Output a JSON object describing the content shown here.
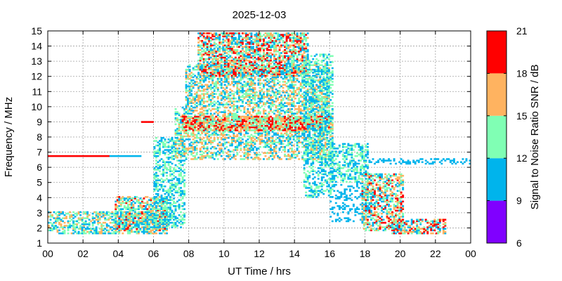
{
  "chart_data": {
    "type": "heatmap",
    "title": "2025-12-03",
    "xlabel": "UT Time / hrs",
    "ylabel": "Frequency / MHz",
    "xlim": [
      0,
      24
    ],
    "ylim": [
      1,
      15
    ],
    "x_ticks": [
      "00",
      "02",
      "04",
      "06",
      "08",
      "10",
      "12",
      "14",
      "16",
      "18",
      "20",
      "22",
      "00"
    ],
    "y_ticks": [
      "1",
      "2",
      "3",
      "4",
      "5",
      "6",
      "7",
      "8",
      "9",
      "10",
      "11",
      "12",
      "13",
      "14",
      "15"
    ],
    "grid": true,
    "colorbar": {
      "label": "Signal to Noise Ratio SNR / dB",
      "range": [
        6,
        21
      ],
      "ticks": [
        "6",
        "9",
        "12",
        "15",
        "18",
        "21"
      ],
      "bands": [
        {
          "from": 6,
          "to": 9,
          "color": "#8000ff"
        },
        {
          "from": 9,
          "to": 12,
          "color": "#00b4ec"
        },
        {
          "from": 12,
          "to": 15,
          "color": "#80ffb4"
        },
        {
          "from": 15,
          "to": 18,
          "color": "#ffb360"
        },
        {
          "from": 18,
          "to": 21,
          "color": "#ff0000"
        }
      ]
    },
    "regions": [
      {
        "x0": 0.0,
        "x1": 6.8,
        "f0": 1.6,
        "f1": 3.1,
        "snr": [
          9,
          17
        ],
        "density": 0.55
      },
      {
        "x0": 3.8,
        "x1": 6.8,
        "f0": 1.8,
        "f1": 4.1,
        "snr": [
          9,
          19
        ],
        "density": 0.6
      },
      {
        "x0": 6.0,
        "x1": 7.8,
        "f0": 2.0,
        "f1": 8.0,
        "snr": [
          9,
          15
        ],
        "density": 0.45
      },
      {
        "x0": 7.2,
        "x1": 16.2,
        "f0": 6.5,
        "f1": 10.0,
        "snr": [
          9,
          18
        ],
        "density": 0.5
      },
      {
        "x0": 7.6,
        "x1": 16.0,
        "f0": 8.4,
        "f1": 9.4,
        "snr": [
          12,
          21
        ],
        "density": 0.75
      },
      {
        "x0": 7.8,
        "x1": 16.0,
        "f0": 10.0,
        "f1": 12.8,
        "snr": [
          9,
          18
        ],
        "density": 0.55
      },
      {
        "x0": 8.5,
        "x1": 14.8,
        "f0": 12.0,
        "f1": 14.9,
        "snr": [
          9,
          21
        ],
        "density": 0.65
      },
      {
        "x0": 14.5,
        "x1": 16.2,
        "f0": 4.0,
        "f1": 13.5,
        "snr": [
          9,
          15
        ],
        "density": 0.4
      },
      {
        "x0": 16.0,
        "x1": 18.2,
        "f0": 5.0,
        "f1": 7.6,
        "snr": [
          9,
          15
        ],
        "density": 0.5
      },
      {
        "x0": 16.0,
        "x1": 18.5,
        "f0": 2.4,
        "f1": 5.0,
        "snr": [
          9,
          12
        ],
        "density": 0.25
      },
      {
        "x0": 17.8,
        "x1": 20.2,
        "f0": 1.8,
        "f1": 5.6,
        "snr": [
          9,
          20
        ],
        "density": 0.55
      },
      {
        "x0": 19.5,
        "x1": 22.6,
        "f0": 1.6,
        "f1": 2.6,
        "snr": [
          9,
          21
        ],
        "density": 0.6
      },
      {
        "x0": 18.0,
        "x1": 24.0,
        "f0": 6.2,
        "f1": 6.6,
        "snr": [
          9,
          12
        ],
        "density": 0.35
      }
    ],
    "lines": [
      {
        "x0": 0.0,
        "x1": 3.5,
        "f": 6.75,
        "snr": 20
      },
      {
        "x0": 3.5,
        "x1": 5.3,
        "f": 6.75,
        "snr": 10
      },
      {
        "x0": 5.3,
        "x1": 6.0,
        "f": 9.0,
        "snr": 20
      }
    ]
  }
}
